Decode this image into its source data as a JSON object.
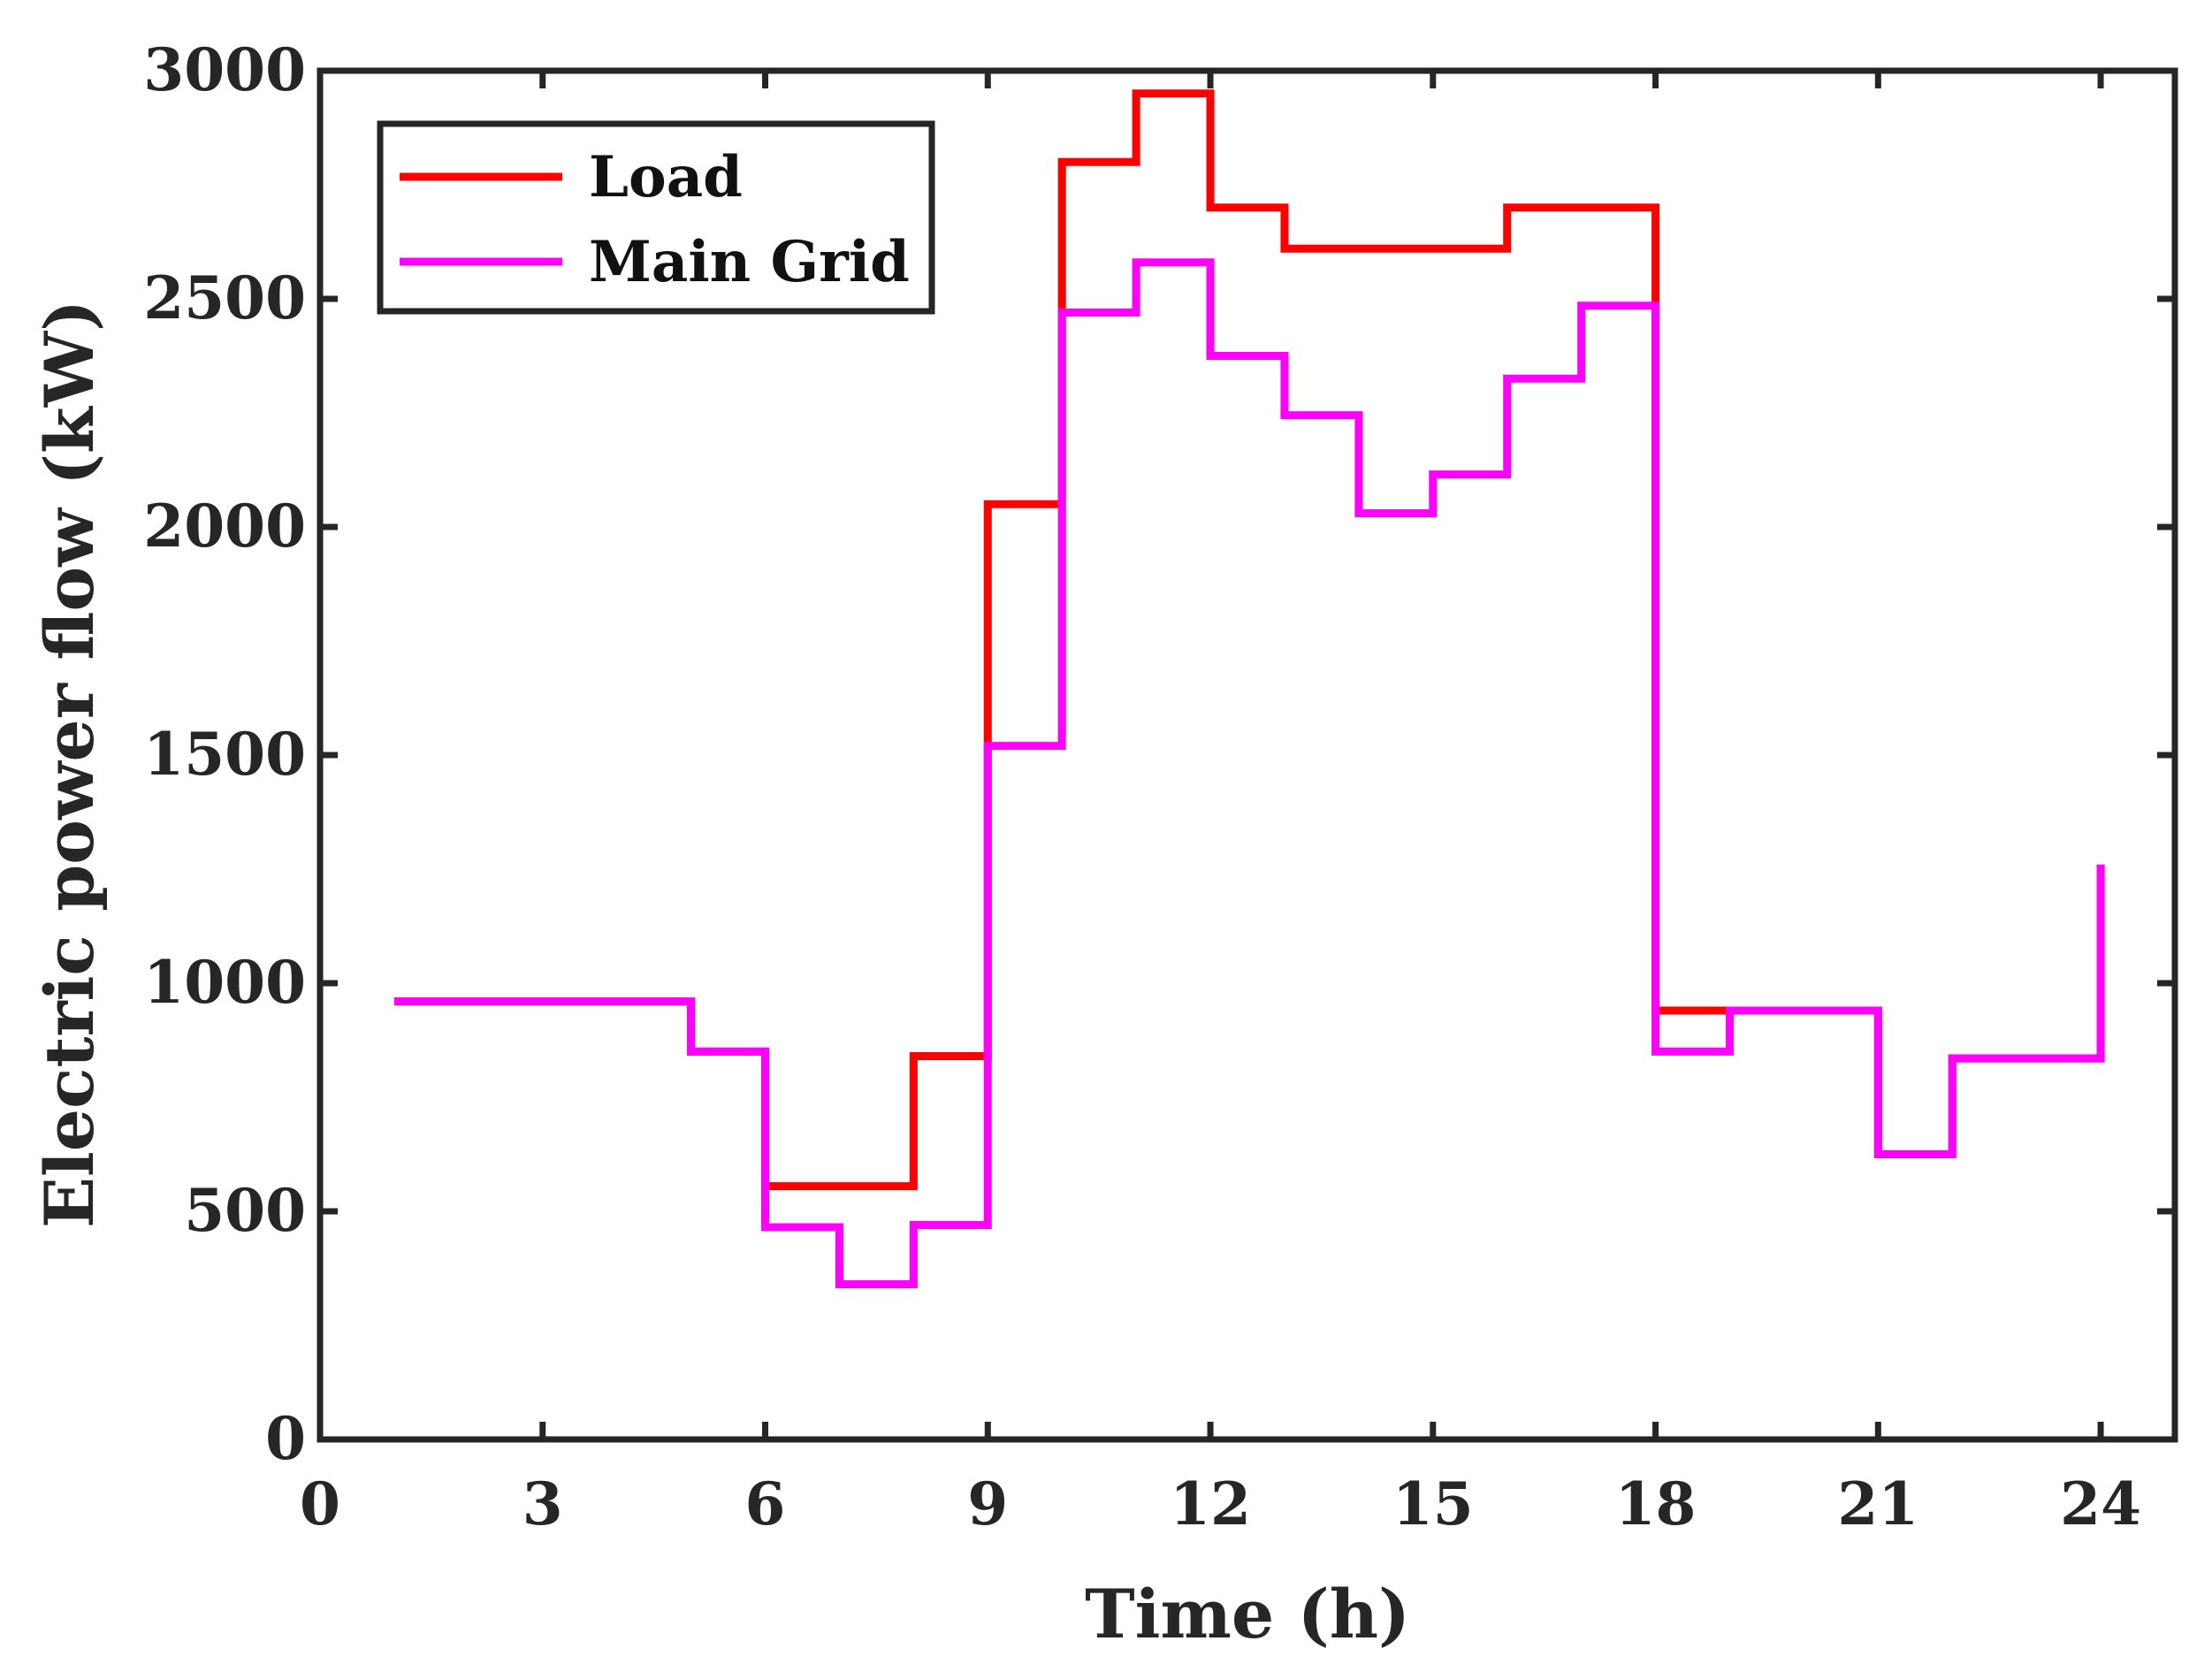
{
  "chart_data": {
    "type": "line",
    "step": true,
    "title": "",
    "xlabel": "Time (h)",
    "ylabel": "Electric power flow (kW)",
    "xlim": [
      0,
      25
    ],
    "ylim": [
      0,
      3000
    ],
    "xticks": [
      0,
      3,
      6,
      9,
      12,
      15,
      18,
      21,
      24
    ],
    "yticks": [
      0,
      500,
      1000,
      1500,
      2000,
      2500,
      3000
    ],
    "grid": false,
    "legend_position": "top-left",
    "x": [
      1,
      2,
      3,
      4,
      5,
      6,
      7,
      8,
      9,
      10,
      11,
      12,
      13,
      14,
      15,
      16,
      17,
      18,
      19,
      20,
      21,
      22,
      23,
      24
    ],
    "series": [
      {
        "name": "Load",
        "color": "#ff0000",
        "values": [
          960,
          960,
          960,
          960,
          850,
          555,
          555,
          840,
          2050,
          2800,
          2950,
          2700,
          2610,
          2610,
          2610,
          2700,
          2700,
          940,
          940,
          940,
          625,
          835,
          835,
          1260
        ]
      },
      {
        "name": "Main Grid",
        "color": "#ff00ff",
        "values": [
          960,
          960,
          960,
          960,
          850,
          465,
          340,
          470,
          1520,
          2470,
          2580,
          2375,
          2245,
          2030,
          2115,
          2325,
          2485,
          850,
          940,
          940,
          625,
          835,
          835,
          1260
        ]
      }
    ]
  }
}
